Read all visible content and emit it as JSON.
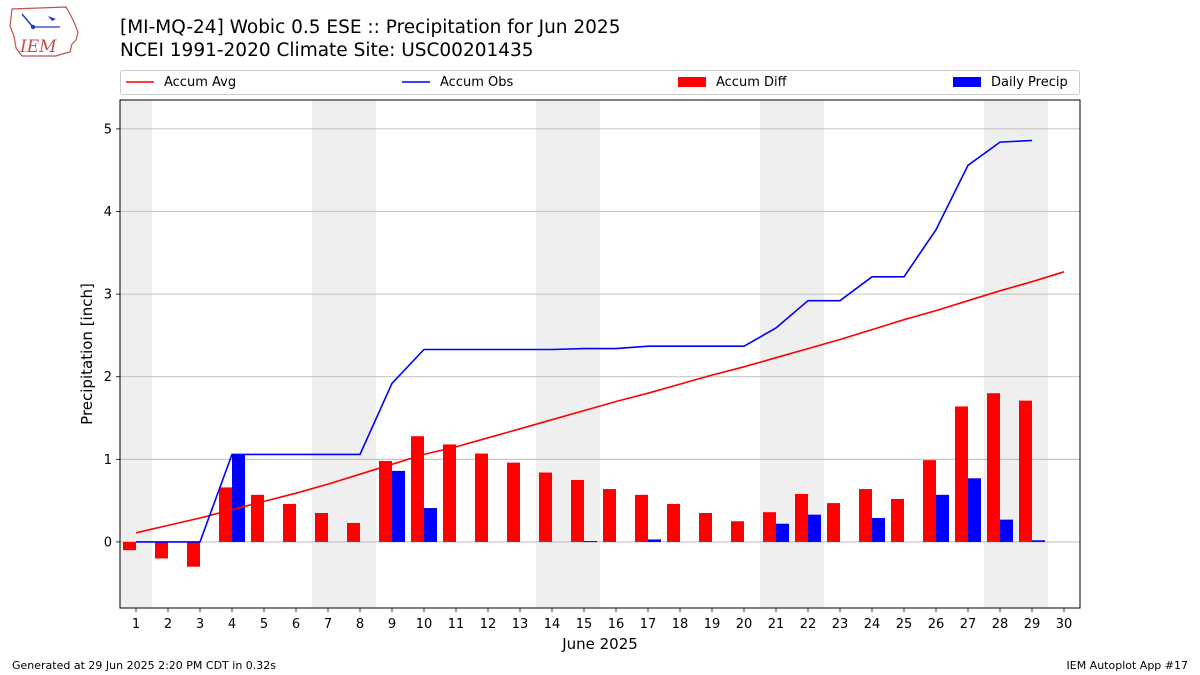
{
  "header": {
    "title_line1": "[MI-MQ-24] Wobic 0.5 ESE :: Precipitation for Jun 2025",
    "title_line2": "NCEI 1991-2020 Climate Site: USC00201435",
    "logo_text": "IEM"
  },
  "footer": {
    "left": "Generated at 29 Jun 2025 2:20 PM CDT in 0.32s",
    "right": "IEM Autoplot App #17"
  },
  "colors": {
    "accum_avg": "#ff0000",
    "accum_obs": "#0000ff",
    "accum_diff": "#ff0000",
    "daily_precip": "#0000ff",
    "weekend_shade": "#efefef",
    "grid": "#b0b0b0"
  },
  "chart_data": {
    "type": "bar",
    "title": "[MI-MQ-24] Wobic 0.5 ESE :: Precipitation for Jun 2025",
    "subtitle": "NCEI 1991-2020 Climate Site: USC00201435",
    "xlabel": "June 2025",
    "ylabel": "Precipitation [inch]",
    "xlim": [
      0.5,
      30.5
    ],
    "ylim": [
      -0.8,
      5.35
    ],
    "yticks": [
      0,
      1,
      2,
      3,
      4,
      5
    ],
    "grid": "y",
    "legend_placement": "top",
    "x": [
      1,
      2,
      3,
      4,
      5,
      6,
      7,
      8,
      9,
      10,
      11,
      12,
      13,
      14,
      15,
      16,
      17,
      18,
      19,
      20,
      21,
      22,
      23,
      24,
      25,
      26,
      27,
      28,
      29,
      30
    ],
    "weekend_spans": [
      [
        0.5,
        1.5
      ],
      [
        6.5,
        8.5
      ],
      [
        13.5,
        15.5
      ],
      [
        20.5,
        22.5
      ],
      [
        27.5,
        29.5
      ]
    ],
    "series": [
      {
        "name": "Accum Avg",
        "kind": "line",
        "values": [
          0.11,
          0.2,
          0.29,
          0.39,
          0.49,
          0.59,
          0.7,
          0.82,
          0.94,
          1.06,
          1.15,
          1.26,
          1.37,
          1.48,
          1.59,
          1.7,
          1.8,
          1.91,
          2.02,
          2.12,
          2.23,
          2.34,
          2.45,
          2.57,
          2.69,
          2.8,
          2.92,
          3.04,
          3.15,
          3.27
        ]
      },
      {
        "name": "Accum Obs",
        "kind": "line",
        "values": [
          0.0,
          0.0,
          0.0,
          1.06,
          1.06,
          1.06,
          1.06,
          1.06,
          1.92,
          2.33,
          2.33,
          2.33,
          2.33,
          2.33,
          2.34,
          2.34,
          2.37,
          2.37,
          2.37,
          2.37,
          2.59,
          2.92,
          2.92,
          3.21,
          3.21,
          3.78,
          4.56,
          4.84,
          4.86,
          null
        ]
      },
      {
        "name": "Accum Diff",
        "kind": "bar",
        "values": [
          -0.1,
          -0.2,
          -0.3,
          0.66,
          0.57,
          0.46,
          0.35,
          0.23,
          0.98,
          1.28,
          1.18,
          1.07,
          0.96,
          0.84,
          0.75,
          0.64,
          0.57,
          0.46,
          0.35,
          0.25,
          0.36,
          0.58,
          0.47,
          0.64,
          0.52,
          0.99,
          1.64,
          1.8,
          1.71,
          null
        ]
      },
      {
        "name": "Daily Precip",
        "kind": "bar",
        "values": [
          0.0,
          0.0,
          0.0,
          1.06,
          0.0,
          0.0,
          0.0,
          0.0,
          0.86,
          0.41,
          0.0,
          0.0,
          0.0,
          0.0,
          0.01,
          0.0,
          0.03,
          0.0,
          0.0,
          0.0,
          0.22,
          0.33,
          0.0,
          0.29,
          0.0,
          0.57,
          0.77,
          0.27,
          0.02,
          null
        ]
      }
    ]
  }
}
